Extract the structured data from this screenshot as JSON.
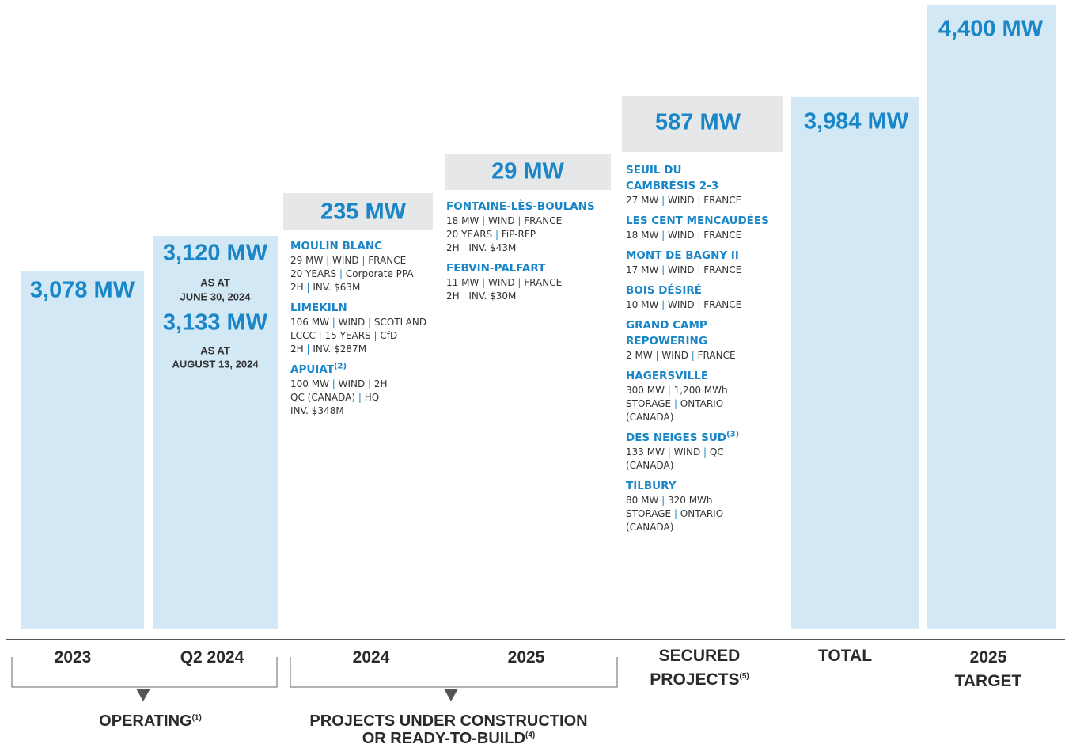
{
  "columns": [
    {
      "label": "2023",
      "headline": "3,078 MW"
    },
    {
      "label": "Q2 2024",
      "headline": "3,120 MW",
      "headline_note": [
        "AS AT",
        "JUNE 30, 2024"
      ],
      "update": "3,133 MW",
      "update_note": [
        "AS AT",
        "AUGUST 13, 2024"
      ]
    },
    {
      "label": "2024",
      "headline": "235 MW",
      "projects": [
        {
          "name": "MOULIN BLANC",
          "lines": [
            [
              "29 MW",
              "WIND",
              "FRANCE"
            ],
            [
              "20 YEARS",
              "Corporate PPA"
            ],
            [
              "2H",
              "INV. $63M"
            ]
          ]
        },
        {
          "name": "LIMEKILN",
          "lines": [
            [
              "106 MW",
              "WIND",
              "SCOTLAND"
            ],
            [
              "LCCC",
              "15 YEARS",
              "CfD"
            ],
            [
              "2H",
              "INV. $287M"
            ]
          ]
        },
        {
          "name": "APUIAT",
          "sup": "(2)",
          "lines": [
            [
              "100 MW",
              "WIND",
              "2H"
            ],
            [
              "QC (CANADA)",
              "HQ"
            ],
            [
              "INV. $348M"
            ]
          ]
        }
      ]
    },
    {
      "label": "2025",
      "headline": "29 MW",
      "projects": [
        {
          "name": "FONTAINE-LÈS-BOULANS",
          "lines": [
            [
              "18 MW",
              "WIND",
              "FRANCE"
            ],
            [
              "20 YEARS",
              "FiP-RFP"
            ],
            [
              "2H",
              "INV. $43M"
            ]
          ]
        },
        {
          "name": "FEBVIN-PALFART",
          "lines": [
            [
              "11 MW",
              "WIND",
              "FRANCE"
            ],
            [
              "2H",
              "INV. $30M"
            ]
          ]
        }
      ]
    },
    {
      "label": [
        "SECURED",
        "PROJECTS"
      ],
      "label_sup": "(5)",
      "headline": "587 MW",
      "projects": [
        {
          "name": [
            "SEUIL DU",
            "CAMBRÉSIS 2-3"
          ],
          "lines": [
            [
              "27 MW",
              "WIND",
              "FRANCE"
            ]
          ]
        },
        {
          "name": "LES CENT MENCAUDÉES",
          "lines": [
            [
              "18 MW",
              "WIND",
              "FRANCE"
            ]
          ]
        },
        {
          "name": "MONT DE BAGNY II",
          "lines": [
            [
              "17 MW",
              "WIND",
              "FRANCE"
            ]
          ]
        },
        {
          "name": "BOIS DÉSIRÉ",
          "lines": [
            [
              "10 MW",
              "WIND",
              "FRANCE"
            ]
          ]
        },
        {
          "name": [
            "GRAND CAMP",
            "REPOWERING"
          ],
          "lines": [
            [
              "2 MW",
              "WIND",
              "FRANCE"
            ]
          ]
        },
        {
          "name": "HAGERSVILLE",
          "lines": [
            [
              "300 MW",
              "1,200 MWh"
            ],
            [
              "STORAGE",
              "ONTARIO"
            ],
            [
              "(CANADA)"
            ]
          ]
        },
        {
          "name": "DES NEIGES SUD",
          "sup": "(3)",
          "lines": [
            [
              "133 MW",
              "WIND",
              "QC"
            ],
            [
              "(CANADA)"
            ]
          ]
        },
        {
          "name": "TILBURY",
          "lines": [
            [
              "80 MW",
              "320 MWh"
            ],
            [
              "STORAGE",
              "ONTARIO"
            ],
            [
              "(CANADA)"
            ]
          ]
        }
      ]
    },
    {
      "label": "TOTAL",
      "headline": "3,984 MW"
    },
    {
      "label": [
        "2025",
        "TARGET"
      ],
      "headline": "4,400 MW"
    }
  ],
  "groups": [
    {
      "label": "OPERATING",
      "sup": "(1)"
    },
    {
      "label": [
        "PROJECTS UNDER CONSTRUCTION",
        "OR READY-TO-BUILD"
      ],
      "sup": "(4)"
    }
  ]
}
